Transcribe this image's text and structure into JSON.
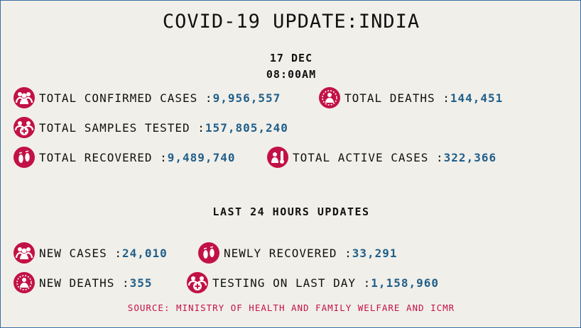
{
  "title": "COVID-19 UPDATE:INDIA",
  "date": "17 DEC",
  "time": "08:00AM",
  "stats": {
    "confirmed_label": "TOTAL CONFIRMED CASES : ",
    "confirmed_value": "9,956,557",
    "deaths_label": "TOTAL DEATHS : ",
    "deaths_value": "144,451",
    "samples_label": "TOTAL SAMPLES TESTED : ",
    "samples_value": "157,805,240",
    "recovered_label": "TOTAL RECOVERED : ",
    "recovered_value": "9,489,740",
    "active_label": "TOTAL ACTIVE CASES : ",
    "active_value": "322,366"
  },
  "last24": {
    "heading": "LAST 24 HOURS UPDATES",
    "new_cases_label": "NEW CASES : ",
    "new_cases_value": "24,010",
    "newly_recovered_label": "NEWLY RECOVERED : ",
    "newly_recovered_value": "33,291",
    "new_deaths_label": "NEW DEATHS : ",
    "new_deaths_value": "355",
    "testing_label": "TESTING ON LAST DAY : ",
    "testing_value": "1,158,960"
  },
  "source": "SOURCE: MINISTRY OF HEALTH AND FAMILY WELFARE AND ICMR",
  "colors": {
    "background": "#f1efe9",
    "value_text": "#1f5f8b",
    "icon": "#c21245",
    "source_text": "#c21245"
  },
  "icons": [
    "people-icon",
    "virus-person-icon",
    "people-plus-icon",
    "footprints-icon",
    "person-thermometer-icon"
  ]
}
